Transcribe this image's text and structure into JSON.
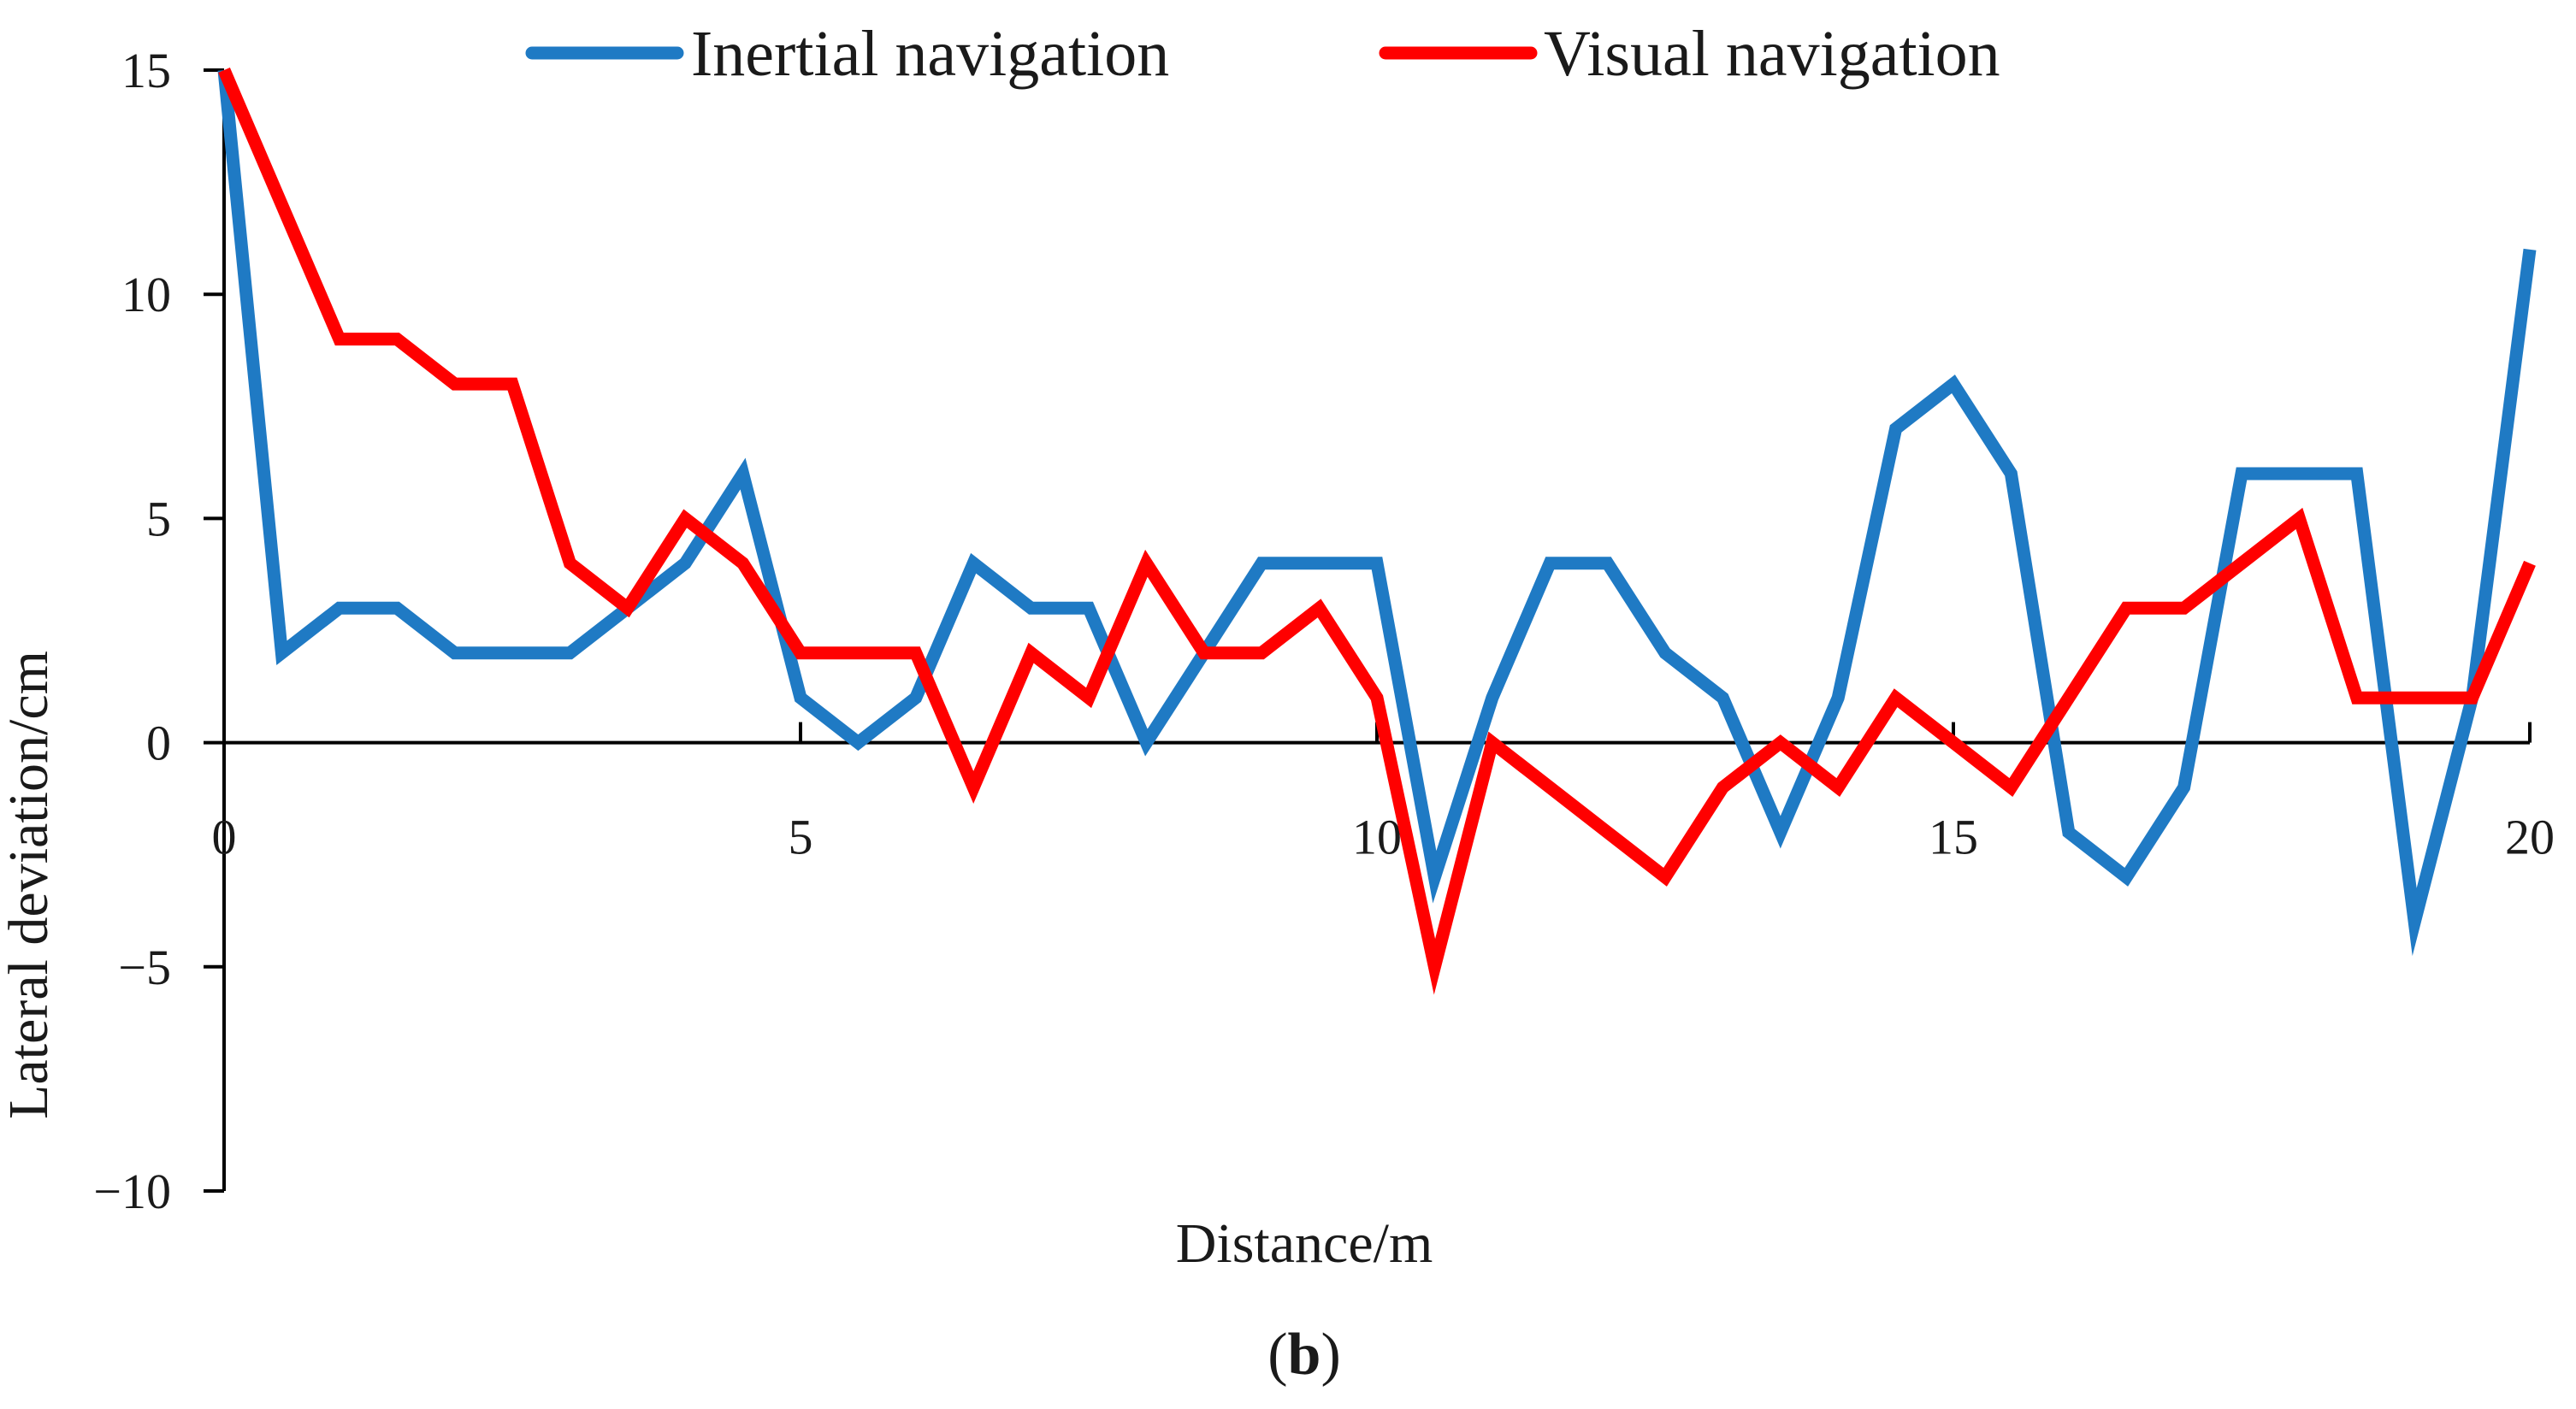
{
  "chart_data": {
    "type": "line",
    "xlabel": "Distance/m",
    "ylabel": "Lateral deviation/cm",
    "caption_open": "(",
    "caption_letter": "b",
    "caption_close": ")",
    "xlim": [
      0,
      20
    ],
    "ylim": [
      -10,
      15
    ],
    "x_ticks": [
      0,
      5,
      10,
      15,
      20
    ],
    "x_tick_labels": [
      "0",
      "5",
      "10",
      "15",
      "20"
    ],
    "y_ticks": [
      -10,
      -5,
      0,
      5,
      10,
      15
    ],
    "y_tick_labels": [
      "−10",
      "−5",
      "0",
      "5",
      "10",
      "15"
    ],
    "grid": false,
    "legend_position": "top",
    "x": [
      0,
      0.5,
      1,
      1.5,
      2,
      2.5,
      3,
      3.5,
      4,
      4.5,
      5,
      5.5,
      6,
      6.5,
      7,
      7.5,
      8,
      8.5,
      9,
      9.5,
      10,
      10.5,
      11,
      11.5,
      12,
      12.5,
      13,
      13.5,
      14,
      14.5,
      15,
      15.5,
      16,
      16.5,
      17,
      17.5,
      18,
      18.5,
      19,
      19.5,
      20
    ],
    "series": [
      {
        "name": "Inertial navigation",
        "color": "#1f7ac4",
        "values": [
          15,
          2,
          3,
          3,
          2,
          2,
          2,
          3,
          4,
          6,
          1,
          0,
          1,
          4,
          3,
          3,
          0,
          2,
          4,
          4,
          4,
          -3,
          1,
          4,
          4,
          2,
          1,
          -2,
          1,
          7,
          8,
          6,
          -2,
          -3,
          -1,
          6,
          6,
          6,
          -4,
          1,
          11
        ]
      },
      {
        "name": "Visual navigation",
        "color": "#ff0000",
        "values": [
          15,
          12,
          9,
          9,
          8,
          8,
          4,
          3,
          5,
          4,
          2,
          2,
          2,
          -1,
          2,
          1,
          4,
          2,
          2,
          3,
          1,
          -5,
          0,
          -1,
          -2,
          -3,
          -1,
          0,
          -1,
          1,
          0,
          -1,
          1,
          3,
          3,
          4,
          5,
          1,
          1,
          1,
          4
        ]
      }
    ]
  }
}
